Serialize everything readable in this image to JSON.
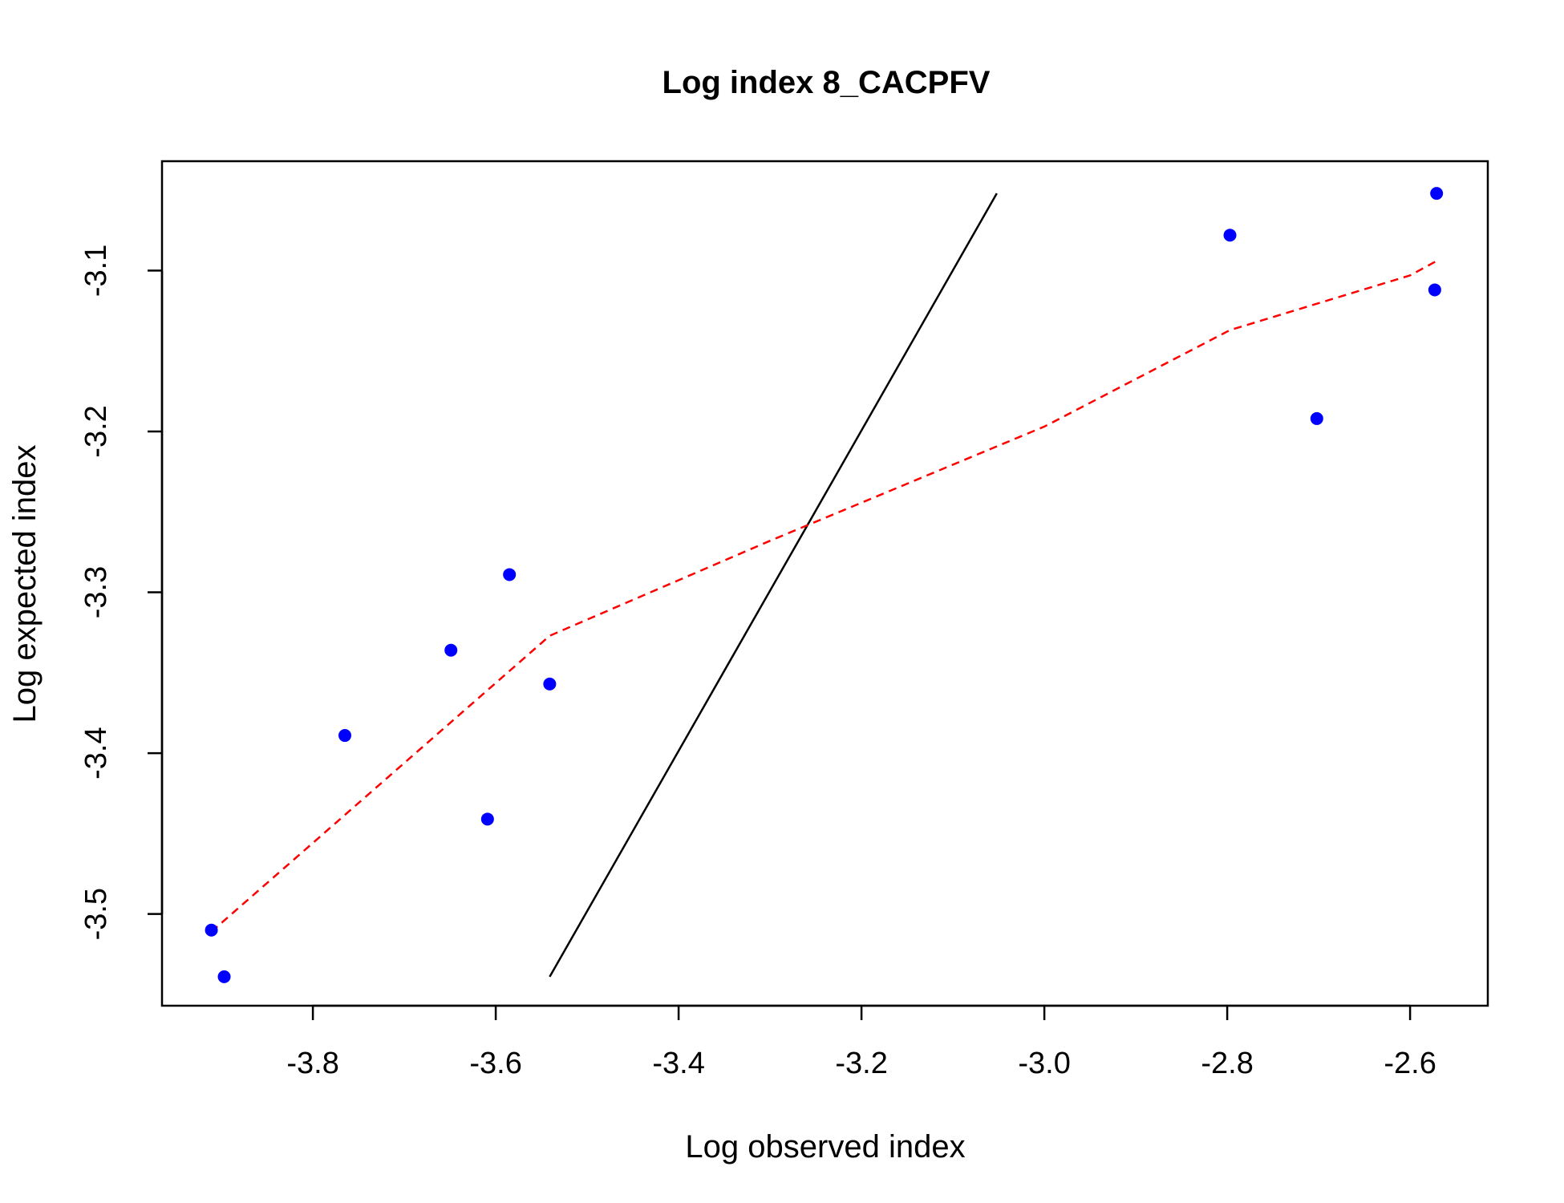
{
  "chart_data": {
    "type": "scatter",
    "title": "Log index 8_CACPFV",
    "xlabel": "Log observed index",
    "ylabel": "Log expected index",
    "xlim": [
      -3.965,
      -2.515
    ],
    "ylim": [
      -3.557,
      -3.032
    ],
    "xticks": [
      -3.8,
      -3.6,
      -3.4,
      -3.2,
      -3.0,
      -2.8,
      -2.6
    ],
    "xtick_labels": [
      "-3.8",
      "-3.6",
      "-3.4",
      "-3.2",
      "-3.0",
      "-2.8",
      "-2.6"
    ],
    "yticks": [
      -3.5,
      -3.4,
      -3.3,
      -3.2,
      -3.1
    ],
    "ytick_labels": [
      "-3.5",
      "-3.4",
      "-3.3",
      "-3.2",
      "-3.1"
    ],
    "grid": false,
    "legend": "none",
    "points": {
      "color": "#0000ff",
      "x": [
        -3.911,
        -3.897,
        -3.765,
        -3.649,
        -3.609,
        -3.585,
        -3.541,
        -2.797,
        -2.702,
        -2.573,
        -2.571
      ],
      "y": [
        -3.51,
        -3.539,
        -3.389,
        -3.336,
        -3.441,
        -3.289,
        -3.357,
        -3.078,
        -3.192,
        -3.112,
        -3.052
      ]
    },
    "reference_line": {
      "color": "#000000",
      "style": "solid",
      "x": [
        -3.541,
        -3.052
      ],
      "y": [
        -3.539,
        -3.052
      ]
    },
    "fit_line": {
      "color": "#ff0000",
      "style": "dashed",
      "x": [
        -3.911,
        -3.541,
        -3.3,
        -3.0,
        -2.797,
        -2.6,
        -2.571
      ],
      "y": [
        -3.511,
        -3.327,
        -3.268,
        -3.197,
        -3.137,
        -3.103,
        -3.094
      ]
    }
  }
}
